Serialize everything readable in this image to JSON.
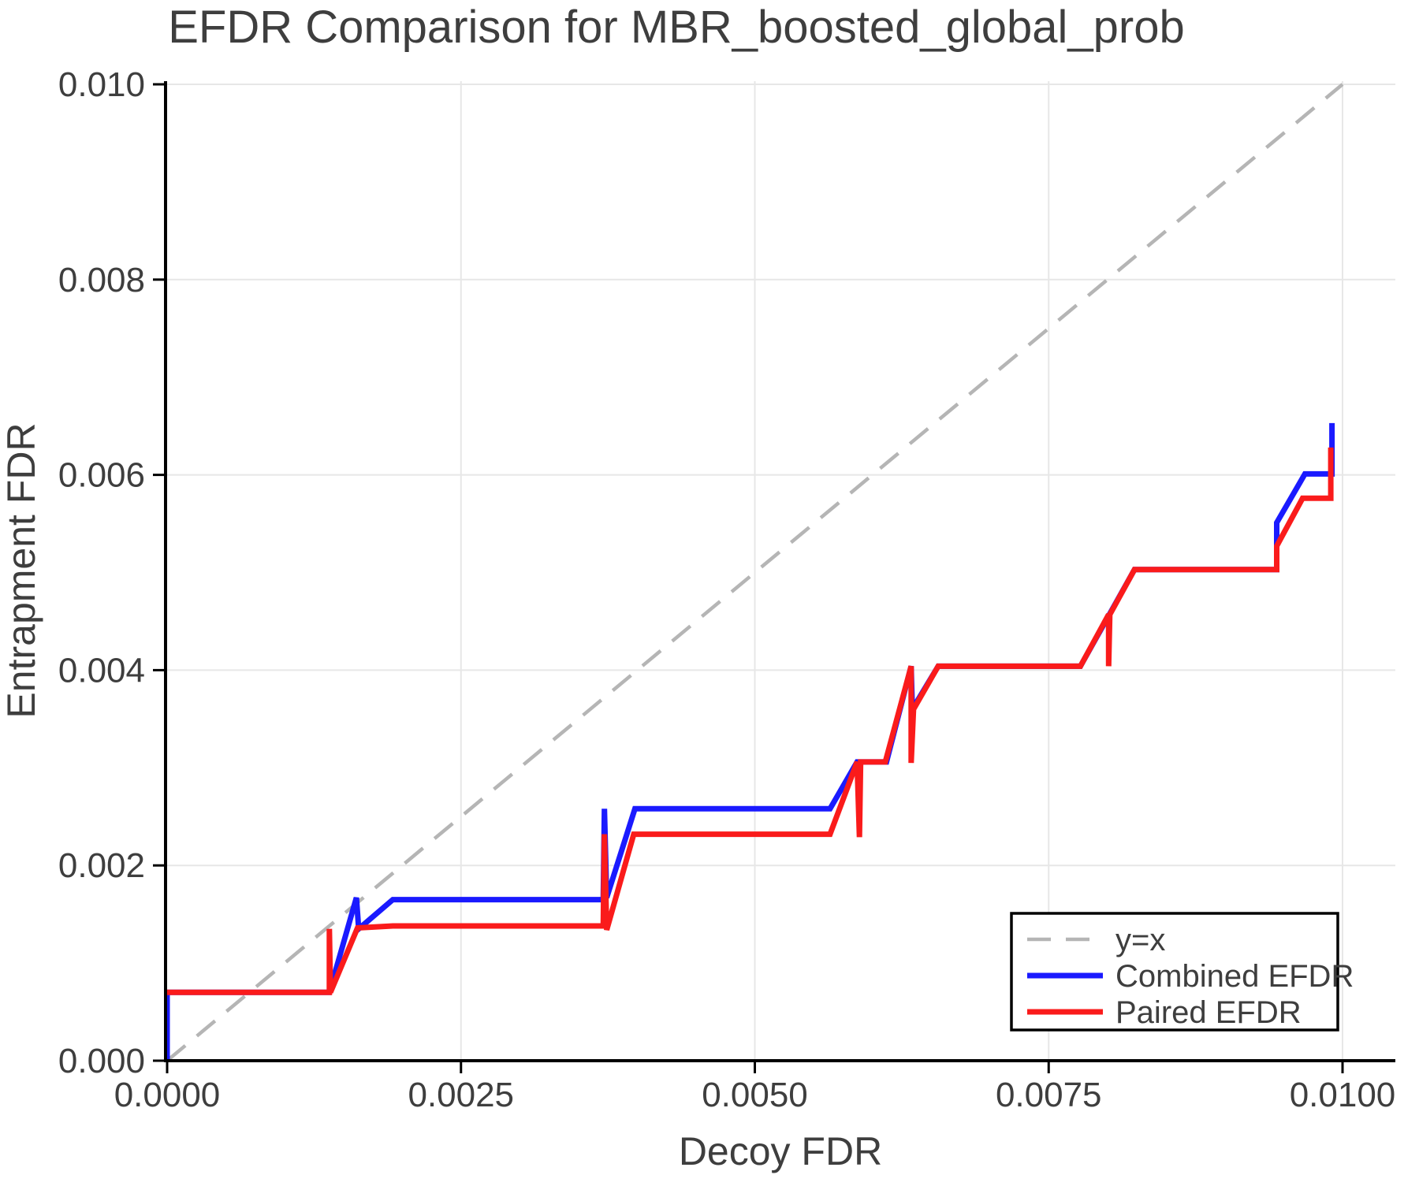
{
  "chart_data": {
    "type": "line",
    "title": "EFDR Comparison for MBR_boosted_global_prob",
    "xlabel": "Decoy FDR",
    "ylabel": "Entrapment FDR",
    "xlim": [
      0.0,
      0.0105
    ],
    "ylim": [
      0.0,
      0.01
    ],
    "grid": true,
    "x_ticks": [
      0.0,
      0.0025,
      0.005,
      0.0075,
      0.01
    ],
    "x_tick_labels": [
      "0.0000",
      "0.0025",
      "0.0050",
      "0.0075",
      "0.0100"
    ],
    "y_ticks": [
      0.0,
      0.002,
      0.004,
      0.006,
      0.008,
      0.01
    ],
    "y_tick_labels": [
      "0.000",
      "0.002",
      "0.004",
      "0.006",
      "0.008",
      "0.010"
    ],
    "colors": {
      "identity": "#b5b5b5",
      "combined": "#1a1aff",
      "paired": "#fa1b1b",
      "grid": "#e7e7e7",
      "spine": "#000000",
      "text": "#3e3e3e"
    },
    "legend": {
      "position": "lower right",
      "entries": [
        {
          "label": "y=x",
          "color": "#b5b5b5",
          "dashed": true
        },
        {
          "label": "Combined EFDR",
          "color": "#1a1aff",
          "dashed": false
        },
        {
          "label": "Paired EFDR",
          "color": "#fa1b1b",
          "dashed": false
        }
      ]
    },
    "series": [
      {
        "name": "y=x",
        "role": "identity",
        "dashed": true,
        "points": [
          [
            0.0,
            0.0
          ],
          [
            0.01,
            0.01
          ]
        ]
      },
      {
        "name": "Combined EFDR",
        "role": "combined",
        "dashed": false,
        "points": [
          [
            0.0,
            0.0
          ],
          [
            0.0,
            0.0007
          ],
          [
            0.00138,
            0.0007
          ],
          [
            0.00161,
            0.00167
          ],
          [
            0.00163,
            0.00135
          ],
          [
            0.00192,
            0.00165
          ],
          [
            0.00371,
            0.00165
          ],
          [
            0.00372,
            0.00258
          ],
          [
            0.00374,
            0.00167
          ],
          [
            0.00398,
            0.00258
          ],
          [
            0.00564,
            0.00258
          ],
          [
            0.00587,
            0.00306
          ],
          [
            0.00612,
            0.00306
          ],
          [
            0.00633,
            0.00404
          ],
          [
            0.00634,
            0.0036
          ],
          [
            0.00656,
            0.00404
          ],
          [
            0.00777,
            0.00404
          ],
          [
            0.00823,
            0.00503
          ],
          [
            0.00944,
            0.00503
          ],
          [
            0.00944,
            0.00551
          ],
          [
            0.00968,
            0.00601
          ],
          [
            0.00991,
            0.00601
          ],
          [
            0.00991,
            0.00653
          ]
        ]
      },
      {
        "name": "Paired EFDR",
        "role": "paired",
        "dashed": false,
        "points": [
          [
            0.0,
            0.0007
          ],
          [
            0.00138,
            0.0007
          ],
          [
            0.00138,
            0.00135
          ],
          [
            0.00139,
            0.0007
          ],
          [
            0.00162,
            0.00136
          ],
          [
            0.00192,
            0.00138
          ],
          [
            0.00371,
            0.00138
          ],
          [
            0.00372,
            0.00232
          ],
          [
            0.00374,
            0.00134
          ],
          [
            0.00397,
            0.00232
          ],
          [
            0.00564,
            0.00232
          ],
          [
            0.00587,
            0.00306
          ],
          [
            0.00589,
            0.00229
          ],
          [
            0.0059,
            0.00306
          ],
          [
            0.00611,
            0.00306
          ],
          [
            0.00633,
            0.00404
          ],
          [
            0.00633,
            0.00305
          ],
          [
            0.00635,
            0.0036
          ],
          [
            0.00656,
            0.00404
          ],
          [
            0.00777,
            0.00404
          ],
          [
            0.00801,
            0.00457
          ],
          [
            0.00801,
            0.00404
          ],
          [
            0.00802,
            0.00457
          ],
          [
            0.00823,
            0.00503
          ],
          [
            0.00944,
            0.00503
          ],
          [
            0.00944,
            0.00527
          ],
          [
            0.00966,
            0.00576
          ],
          [
            0.0099,
            0.00576
          ],
          [
            0.0099,
            0.00628
          ]
        ]
      }
    ]
  }
}
